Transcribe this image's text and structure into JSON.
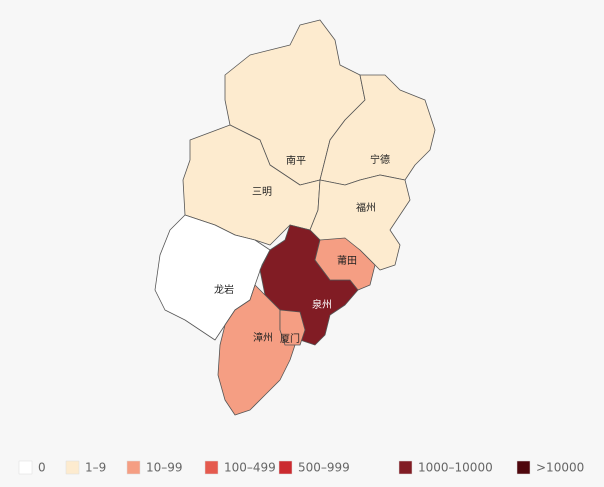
{
  "regions": [
    {
      "name": "南平",
      "color": "#fdebcf"
    },
    {
      "name": "宁德",
      "color": "#fdebcf"
    },
    {
      "name": "三明",
      "color": "#fdebcf"
    },
    {
      "name": "福州",
      "color": "#fdebcf"
    },
    {
      "name": "龙岩",
      "color": "#ffffff"
    },
    {
      "name": "莆田",
      "color": "#f59e83"
    },
    {
      "name": "泉州",
      "color": "#811c24"
    },
    {
      "name": "漳州",
      "color": "#f59e83"
    },
    {
      "name": "厦门",
      "color": "#f59e83"
    }
  ],
  "legend": [
    {
      "label": "0",
      "color": "#ffffff"
    },
    {
      "label": "1–9",
      "color": "#fdebcf"
    },
    {
      "label": "10–99",
      "color": "#f59e83"
    },
    {
      "label": "100–499",
      "color": "#e55a4e"
    },
    {
      "label": "500–999",
      "color": "#cb2a2f"
    },
    {
      "label": "1000–10000",
      "color": "#811c24"
    },
    {
      "label": ">10000",
      "color": "#4f070d"
    }
  ]
}
